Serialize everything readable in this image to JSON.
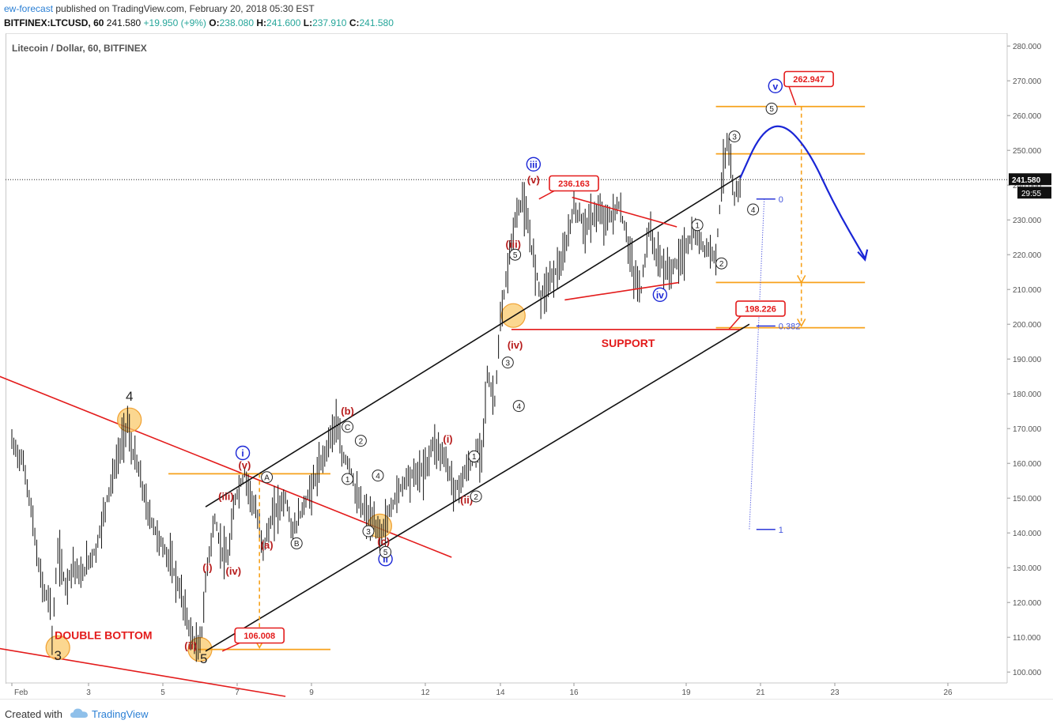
{
  "header": {
    "author": "ew-forecast",
    "published_text": "published on TradingView.com, February 20, 2018 05:30 EST"
  },
  "ohlc": {
    "symbol": "BITFINEX:LTCUSD, 60",
    "last": "241.580",
    "change": "+19.950 (+9%)",
    "o_label": "O:",
    "o": "238.080",
    "h_label": "H:",
    "h": "241.600",
    "l_label": "L:",
    "l": "237.910",
    "c_label": "C:",
    "c": "241.580"
  },
  "footer": {
    "made_with": "Created with",
    "brand": "TradingView"
  },
  "colors": {
    "red": "#e31b1b",
    "orange": "#f7a21c",
    "blue": "#1a26d6",
    "darkred": "#b71c1c",
    "candle": "#111111",
    "highlight": "#f9c96b"
  },
  "chart_data": {
    "type": "line",
    "title": "Litecoin / Dollar, 60, BITFINEX",
    "ylim": [
      93,
      281
    ],
    "y_ticks": [
      "100.000",
      "110.000",
      "120.000",
      "130.000",
      "140.000",
      "150.000",
      "160.000",
      "170.000",
      "180.000",
      "190.000",
      "200.000",
      "210.000",
      "220.000",
      "230.000",
      "240.000",
      "250.000",
      "260.000",
      "270.000",
      "280.000"
    ],
    "x_ticks": [
      "Feb",
      "3",
      "5",
      "7",
      "9",
      "12",
      "14",
      "16",
      "19",
      "21",
      "23",
      "26"
    ],
    "last_price_label": "241.580",
    "countdown_label": "29:55",
    "price_path": [
      [
        1.0,
        166
      ],
      [
        1.3,
        160
      ],
      [
        1.5,
        147
      ],
      [
        1.7,
        130
      ],
      [
        1.85,
        123
      ],
      [
        2.0,
        120
      ],
      [
        2.05,
        110
      ],
      [
        2.2,
        135
      ],
      [
        2.4,
        125
      ],
      [
        2.6,
        131
      ],
      [
        2.8,
        127
      ],
      [
        3.0,
        132
      ],
      [
        3.2,
        135
      ],
      [
        3.5,
        150
      ],
      [
        3.7,
        158
      ],
      [
        3.9,
        166
      ],
      [
        4.05,
        172
      ],
      [
        4.15,
        164
      ],
      [
        4.3,
        160
      ],
      [
        4.6,
        146
      ],
      [
        4.9,
        138
      ],
      [
        5.2,
        132
      ],
      [
        5.5,
        122
      ],
      [
        5.75,
        111
      ],
      [
        5.95,
        106
      ],
      [
        6.05,
        112
      ],
      [
        6.2,
        131
      ],
      [
        6.4,
        144
      ],
      [
        6.55,
        136
      ],
      [
        6.75,
        132
      ],
      [
        6.95,
        150
      ],
      [
        7.2,
        157
      ],
      [
        7.5,
        146
      ],
      [
        7.7,
        136
      ],
      [
        8.0,
        146
      ],
      [
        8.3,
        150
      ],
      [
        8.5,
        140
      ],
      [
        8.8,
        148
      ],
      [
        9.2,
        158
      ],
      [
        9.5,
        168
      ],
      [
        9.65,
        172
      ],
      [
        9.8,
        162
      ],
      [
        10.0,
        160
      ],
      [
        10.2,
        150
      ],
      [
        10.4,
        146
      ],
      [
        10.65,
        142
      ],
      [
        10.85,
        140
      ],
      [
        11.2,
        150
      ],
      [
        11.5,
        156
      ],
      [
        12.0,
        158
      ],
      [
        12.2,
        166
      ],
      [
        12.5,
        162
      ],
      [
        12.8,
        152
      ],
      [
        13.2,
        160
      ],
      [
        13.5,
        164
      ],
      [
        13.65,
        185
      ],
      [
        13.85,
        178
      ],
      [
        14.0,
        200
      ],
      [
        14.2,
        216
      ],
      [
        14.4,
        230
      ],
      [
        14.6,
        236
      ],
      [
        14.85,
        222
      ],
      [
        15.1,
        208
      ],
      [
        15.4,
        214
      ],
      [
        15.7,
        218
      ],
      [
        16.0,
        234
      ],
      [
        16.3,
        228
      ],
      [
        16.6,
        232
      ],
      [
        16.9,
        230
      ],
      [
        17.2,
        234
      ],
      [
        17.4,
        226
      ],
      [
        17.6,
        214
      ],
      [
        17.8,
        210
      ],
      [
        18.0,
        228
      ],
      [
        18.2,
        220
      ],
      [
        18.5,
        215
      ],
      [
        18.8,
        218
      ],
      [
        19.0,
        222
      ],
      [
        19.2,
        226
      ],
      [
        19.5,
        222
      ],
      [
        19.8,
        220
      ],
      [
        20.0,
        246
      ],
      [
        20.1,
        252
      ],
      [
        20.3,
        236
      ],
      [
        20.5,
        242
      ]
    ],
    "channel_upper": [
      [
        6.15,
        147.5
      ],
      [
        20.5,
        243
      ]
    ],
    "channel_lower": [
      [
        6.15,
        106
      ],
      [
        20.7,
        200
      ]
    ],
    "downtrend_upper": [
      [
        0,
        188
      ],
      [
        12.7,
        133
      ]
    ],
    "downtrend_lower": [
      [
        0,
        108
      ],
      [
        8.3,
        93
      ]
    ],
    "triangle_upper": [
      [
        15.95,
        236.5
      ],
      [
        18.75,
        228
      ]
    ],
    "triangle_lower": [
      [
        15.75,
        207
      ],
      [
        18.8,
        212
      ]
    ],
    "support_line": [
      [
        14.3,
        198.5
      ],
      [
        20.45,
        198.5
      ]
    ],
    "orange_levels": [
      {
        "y": 157,
        "x": [
          5.15,
          9.5
        ]
      },
      {
        "y": 106.5,
        "x": [
          5.95,
          9.5
        ]
      },
      {
        "y": 262.6,
        "x": [
          19.8,
          23.8
        ]
      },
      {
        "y": 249,
        "x": [
          19.8,
          23.8
        ]
      },
      {
        "y": 212,
        "x": [
          19.8,
          23.8
        ]
      },
      {
        "y": 199,
        "x": [
          19.8,
          23.8
        ]
      }
    ],
    "orange_arrows": [
      {
        "x": 7.6,
        "from": 157,
        "to": 107
      },
      {
        "x": 22.1,
        "from": 262.6,
        "to": 212
      },
      {
        "x": 22.1,
        "from": 212,
        "to": 199.5
      }
    ],
    "fib_labels": [
      {
        "label": "0",
        "x": 21.4,
        "y": 236
      },
      {
        "label": "0.382",
        "x": 21.4,
        "y": 199.5
      },
      {
        "label": "1",
        "x": 21.4,
        "y": 141
      }
    ],
    "fib_line": {
      "from": [
        21.1,
        236
      ],
      "to": [
        20.7,
        141
      ]
    },
    "projection": [
      [
        20.45,
        242
      ],
      [
        21.0,
        255
      ],
      [
        21.6,
        258
      ],
      [
        22.3,
        250
      ],
      [
        23.0,
        234
      ],
      [
        23.8,
        219
      ]
    ],
    "price_callouts": [
      {
        "label": "262.947",
        "x": 22.3,
        "y": 270.5,
        "tip": [
          21.95,
          263
        ]
      },
      {
        "label": "236.163",
        "x": 16.0,
        "y": 240.5,
        "tip": [
          15.05,
          236
        ]
      },
      {
        "label": "198.226",
        "x": 21.0,
        "y": 204.5,
        "tip": [
          20.15,
          198.5
        ]
      },
      {
        "label": "106.008",
        "x": 7.6,
        "y": 110.5,
        "tip": [
          6.6,
          106
        ]
      }
    ],
    "text_annotations": [
      {
        "label": "SUPPORT",
        "x": 17.45,
        "y": 193.5,
        "style": "support"
      },
      {
        "label": "DOUBLE BOTTOM",
        "x": 3.4,
        "y": 109.5,
        "style": "support"
      },
      {
        "label": "3",
        "x": 2.2,
        "y": 103.5,
        "style": "major"
      },
      {
        "label": "4",
        "x": 4.1,
        "y": 178,
        "style": "major"
      },
      {
        "label": "5",
        "x": 6.1,
        "y": 102.5,
        "style": "major"
      }
    ],
    "wave_labels_red": [
      {
        "label": "(i)",
        "x": 6.2,
        "y": 129
      },
      {
        "label": "(iii)",
        "x": 6.7,
        "y": 149.5
      },
      {
        "label": "(iv)",
        "x": 6.9,
        "y": 128
      },
      {
        "label": "(v)",
        "x": 7.2,
        "y": 158.5
      },
      {
        "label": "(a)",
        "x": 7.8,
        "y": 135.5
      },
      {
        "label": "(b)",
        "x": 9.95,
        "y": 174
      },
      {
        "label": "(c)",
        "x": 10.9,
        "y": 136.5
      },
      {
        "label": "(i)",
        "x": 12.6,
        "y": 166
      },
      {
        "label": "(ii)",
        "x": 13.1,
        "y": 148.5
      },
      {
        "label": "(iii)",
        "x": 14.35,
        "y": 222
      },
      {
        "label": "(iv)",
        "x": 14.4,
        "y": 193
      },
      {
        "label": "(v)",
        "x": 14.9,
        "y": 240.5
      },
      {
        "label": "(ii)",
        "x": 5.75,
        "y": 106.5
      }
    ],
    "wave_labels_circled_blue": [
      {
        "label": "i",
        "x": 7.15,
        "y": 163
      },
      {
        "label": "ii",
        "x": 10.95,
        "y": 132.5
      },
      {
        "label": "iii",
        "x": 14.9,
        "y": 246
      },
      {
        "label": "iv",
        "x": 18.3,
        "y": 208.5
      },
      {
        "label": "v",
        "x": 21.4,
        "y": 268.5
      }
    ],
    "wave_labels_circled_black": [
      {
        "label": "A",
        "x": 7.8,
        "y": 156
      },
      {
        "label": "B",
        "x": 8.6,
        "y": 137
      },
      {
        "label": "C",
        "x": 9.95,
        "y": 170.5
      },
      {
        "label": "1",
        "x": 9.95,
        "y": 155.5
      },
      {
        "label": "2",
        "x": 10.3,
        "y": 166.5
      },
      {
        "label": "3",
        "x": 10.5,
        "y": 140.5
      },
      {
        "label": "4",
        "x": 10.75,
        "y": 156.5
      },
      {
        "label": "5",
        "x": 10.95,
        "y": 134.5
      },
      {
        "label": "1",
        "x": 13.3,
        "y": 162
      },
      {
        "label": "2",
        "x": 13.35,
        "y": 150.5
      },
      {
        "label": "3",
        "x": 14.2,
        "y": 189
      },
      {
        "label": "4",
        "x": 14.5,
        "y": 176.5
      },
      {
        "label": "5",
        "x": 14.4,
        "y": 220
      },
      {
        "label": "1",
        "x": 19.3,
        "y": 228.5
      },
      {
        "label": "2",
        "x": 19.95,
        "y": 217.5
      },
      {
        "label": "3",
        "x": 20.3,
        "y": 254
      },
      {
        "label": "4",
        "x": 20.8,
        "y": 233
      },
      {
        "label": "5",
        "x": 21.3,
        "y": 262
      }
    ],
    "highlight_circles": [
      {
        "x": 2.2,
        "y": 107
      },
      {
        "x": 4.1,
        "y": 172.5
      },
      {
        "x": 6.0,
        "y": 106.5
      },
      {
        "x": 10.8,
        "y": 142
      },
      {
        "x": 14.35,
        "y": 202.5
      }
    ]
  }
}
